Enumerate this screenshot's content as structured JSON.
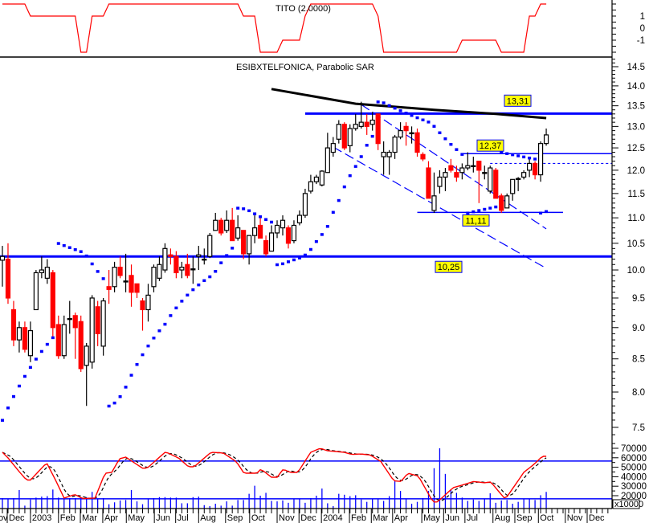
{
  "colors": {
    "up_fill": "#ffffff",
    "up_stroke": "#000000",
    "down": "#ff0000",
    "sar": "#0000ff",
    "level": "#0000ff",
    "ma": "#000000",
    "oscillator": "#ff0000",
    "signal": "#000000",
    "volume": "#0000ff",
    "label_bg": "#ffff00"
  },
  "chart_data": [
    {
      "type": "line",
      "panel": "indicator-top",
      "title": "TITO (2.0000)",
      "ylim": [
        -2,
        2
      ],
      "tick_labels": [
        "1",
        "0",
        "-1"
      ],
      "tick_values": [
        1,
        0,
        -1
      ],
      "values": [
        2,
        2,
        2,
        2,
        2,
        1,
        1,
        1,
        1,
        1,
        1,
        1,
        1,
        1,
        -2,
        -2,
        1,
        1,
        1,
        2,
        2,
        2,
        2,
        2,
        2,
        2,
        2,
        2,
        2,
        2,
        2,
        2,
        2,
        2,
        2,
        2,
        2,
        2,
        2,
        2,
        2,
        2,
        2,
        1,
        1,
        1,
        -2,
        -2,
        -2,
        -2,
        -1,
        -1,
        -1,
        -1,
        1,
        2,
        2,
        2,
        2,
        2,
        2,
        2,
        2,
        2,
        2,
        2,
        2,
        1,
        -2,
        -2,
        -2,
        -2,
        -2,
        -2,
        -2,
        -2,
        -2,
        -2,
        -2,
        -2,
        -2,
        -2,
        -1,
        -1,
        -1,
        -1,
        -1,
        -1,
        -1,
        -2,
        -2,
        -2,
        -2,
        -2,
        1,
        1,
        2,
        2
      ]
    },
    {
      "type": "candlestick",
      "panel": "price",
      "title": "ESIBXTELFONICA, Parabolic SAR",
      "scale": "log",
      "ylim": [
        7.3,
        14.7
      ],
      "tick_labels": [
        "14.5",
        "14.0",
        "13.5",
        "13.0",
        "12.5",
        "12.0",
        "11.5",
        "11.0",
        "10.5",
        "10.0",
        "9.5",
        "9.0",
        "8.5",
        "8.0",
        "7.5"
      ],
      "tick_values": [
        14.5,
        14.0,
        13.5,
        13.0,
        12.5,
        12.0,
        11.5,
        11.0,
        10.5,
        10.0,
        9.5,
        9.0,
        8.5,
        8.0,
        7.5
      ],
      "ohlc": [
        [
          10.18,
          10.45,
          9.7,
          10.25
        ],
        [
          10.2,
          10.5,
          9.4,
          9.5
        ],
        [
          9.3,
          9.45,
          8.7,
          8.8
        ],
        [
          8.8,
          9.1,
          8.6,
          9.0
        ],
        [
          9.0,
          9.1,
          8.6,
          8.65
        ],
        [
          8.55,
          9.1,
          8.45,
          8.95
        ],
        [
          9.3,
          10.0,
          9.3,
          9.95
        ],
        [
          9.95,
          10.25,
          9.85,
          10.0
        ],
        [
          9.85,
          10.2,
          9.75,
          10.05
        ],
        [
          9.95,
          10.0,
          8.85,
          9.0
        ],
        [
          9.05,
          9.2,
          8.5,
          8.55
        ],
        [
          8.55,
          9.2,
          8.5,
          9.05
        ],
        [
          9.15,
          9.45,
          8.9,
          9.15
        ],
        [
          9.2,
          9.25,
          8.5,
          9.0
        ],
        [
          9.1,
          9.2,
          8.3,
          8.35
        ],
        [
          8.4,
          8.75,
          7.8,
          8.7
        ],
        [
          8.45,
          9.55,
          8.35,
          9.5
        ],
        [
          9.35,
          9.45,
          8.7,
          8.9
        ],
        [
          8.7,
          9.5,
          8.55,
          9.45
        ],
        [
          9.7,
          10.0,
          9.4,
          9.65
        ],
        [
          9.7,
          10.15,
          9.6,
          10.05
        ],
        [
          10.05,
          10.25,
          9.85,
          9.9
        ],
        [
          9.8,
          10.3,
          9.6,
          9.8
        ],
        [
          9.9,
          10.1,
          9.35,
          9.6
        ],
        [
          9.75,
          9.75,
          9.5,
          9.6
        ],
        [
          9.45,
          9.5,
          8.95,
          9.3
        ],
        [
          9.3,
          9.75,
          9.1,
          9.55
        ],
        [
          9.7,
          10.1,
          9.6,
          10.05
        ],
        [
          9.85,
          10.25,
          9.8,
          10.1
        ],
        [
          10.0,
          10.5,
          9.95,
          10.4
        ],
        [
          10.28,
          10.4,
          10.1,
          10.25
        ],
        [
          10.25,
          10.35,
          9.85,
          9.95
        ],
        [
          10.0,
          10.15,
          9.85,
          10.05
        ],
        [
          10.1,
          10.3,
          9.85,
          9.9
        ],
        [
          10.02,
          10.25,
          9.75,
          10.02
        ],
        [
          10.25,
          10.45,
          10.0,
          10.28
        ],
        [
          10.2,
          10.4,
          10.1,
          10.2
        ],
        [
          10.25,
          10.7,
          10.22,
          10.65
        ],
        [
          10.75,
          11.1,
          10.75,
          10.95
        ],
        [
          10.95,
          11.0,
          10.65,
          10.7
        ],
        [
          10.75,
          11.15,
          10.7,
          10.95
        ],
        [
          10.95,
          11.2,
          10.55,
          10.55
        ],
        [
          10.6,
          11.05,
          10.55,
          10.8
        ],
        [
          10.75,
          10.75,
          10.2,
          10.3
        ],
        [
          10.3,
          10.65,
          10.1,
          10.65
        ],
        [
          10.65,
          11.05,
          10.5,
          10.8
        ],
        [
          10.85,
          11.0,
          10.6,
          10.6
        ],
        [
          10.55,
          10.65,
          10.25,
          10.3
        ],
        [
          10.35,
          10.85,
          10.35,
          10.7
        ],
        [
          10.7,
          10.95,
          10.6,
          10.85
        ],
        [
          10.8,
          11.05,
          10.65,
          10.95
        ],
        [
          10.8,
          10.85,
          10.4,
          10.5
        ],
        [
          10.55,
          10.95,
          10.5,
          10.85
        ],
        [
          10.9,
          11.15,
          10.85,
          11.05
        ],
        [
          11.05,
          11.6,
          11.0,
          11.5
        ],
        [
          11.55,
          11.9,
          11.5,
          11.75
        ],
        [
          11.75,
          11.9,
          11.7,
          11.85
        ],
        [
          11.68,
          12.0,
          11.65,
          11.98
        ],
        [
          11.95,
          12.85,
          11.95,
          12.5
        ],
        [
          12.4,
          12.75,
          12.3,
          12.6
        ],
        [
          12.7,
          13.15,
          12.6,
          13.05
        ],
        [
          13.05,
          13.1,
          12.45,
          12.5
        ],
        [
          12.55,
          13.05,
          12.4,
          12.95
        ],
        [
          12.95,
          13.3,
          12.9,
          13.05
        ],
        [
          13.0,
          13.6,
          12.95,
          13.1
        ],
        [
          13.1,
          13.3,
          12.8,
          13.0
        ],
        [
          13.05,
          13.35,
          12.9,
          13.15
        ],
        [
          13.3,
          13.3,
          12.45,
          12.6
        ],
        [
          12.3,
          12.65,
          11.9,
          12.4
        ],
        [
          12.3,
          12.45,
          11.9,
          12.4
        ],
        [
          12.4,
          12.8,
          12.25,
          12.75
        ],
        [
          12.75,
          13.1,
          12.7,
          12.9
        ],
        [
          13.0,
          13.1,
          12.55,
          12.9
        ],
        [
          12.85,
          13.0,
          12.6,
          12.85
        ],
        [
          12.85,
          12.95,
          12.3,
          12.4
        ],
        [
          12.35,
          12.4,
          12.2,
          12.25
        ],
        [
          12.05,
          12.2,
          11.4,
          11.4
        ],
        [
          11.15,
          11.95,
          11.1,
          11.45
        ],
        [
          11.65,
          12.0,
          11.5,
          11.85
        ],
        [
          11.85,
          12.05,
          11.55,
          11.95
        ],
        [
          12.1,
          12.25,
          11.95,
          12.0
        ],
        [
          11.95,
          12.1,
          11.75,
          11.85
        ],
        [
          11.95,
          12.15,
          11.8,
          12.05
        ],
        [
          12.05,
          12.4,
          12.0,
          12.1
        ],
        [
          12.1,
          12.3,
          11.95,
          12.1
        ],
        [
          12.2,
          12.2,
          11.3,
          12.0
        ],
        [
          11.95,
          12.1,
          11.8,
          11.95
        ],
        [
          11.55,
          12.1,
          11.5,
          12.05
        ],
        [
          12.0,
          12.05,
          11.4,
          11.4
        ],
        [
          11.45,
          11.5,
          11.1,
          11.15
        ],
        [
          11.2,
          11.5,
          11.2,
          11.45
        ],
        [
          11.5,
          11.8,
          11.35,
          11.8
        ],
        [
          11.8,
          11.85,
          11.55,
          11.82
        ],
        [
          11.85,
          12.0,
          11.8,
          11.95
        ],
        [
          12.0,
          12.25,
          11.85,
          12.15
        ],
        [
          12.15,
          12.2,
          11.8,
          11.9
        ],
        [
          11.9,
          12.65,
          11.75,
          12.6
        ],
        [
          12.6,
          12.95,
          12.55,
          12.8
        ]
      ],
      "sar": {
        "step": 0.02,
        "max": 0.2,
        "initial": {
          "trend": "up",
          "sar": 7.6,
          "ep": 10.5,
          "af": 0.06
        }
      },
      "moving_average": [
        [
          48,
          13.92
        ],
        [
          63,
          13.55
        ],
        [
          77,
          13.4
        ],
        [
          88,
          13.3
        ],
        [
          97,
          13.2
        ]
      ],
      "levels": [
        {
          "value": 13.31,
          "label": "13,31",
          "from": 54,
          "weight": "thick"
        },
        {
          "value": 12.37,
          "label": "12,37",
          "from": 82,
          "weight": "thin"
        },
        {
          "value": 12.15,
          "label": "",
          "from": 87,
          "weight": "dotted"
        },
        {
          "value": 11.11,
          "label": "11,11",
          "from": 74,
          "to": 100,
          "weight": "thin"
        },
        {
          "value": 10.25,
          "label": "10,25",
          "from": -1,
          "weight": "thick"
        }
      ],
      "level_labels": [
        "13,31",
        "12,37",
        "11,11",
        "10,25"
      ],
      "trend_channel": [
        {
          "from": [
            64,
            13.53
          ],
          "to": [
            97,
            10.78
          ]
        },
        {
          "from": [
            59,
            12.52
          ],
          "to": [
            97,
            10.03
          ]
        }
      ]
    },
    {
      "type": "bar+line",
      "panel": "volume",
      "ylim": [
        6400,
        72000
      ],
      "unit_label": "x10000",
      "tick_labels": [
        "70000",
        "60000",
        "50000",
        "40000",
        "30000",
        "20000"
      ],
      "tick_values": [
        70000,
        60000,
        50000,
        40000,
        30000,
        20000
      ],
      "volume": [
        17500,
        16700,
        17500,
        26000,
        9500,
        16000,
        18000,
        19000,
        19500,
        26500,
        18000,
        17000,
        17500,
        17500,
        18000,
        18500,
        24000,
        16500,
        17500,
        11000,
        13000,
        15000,
        15500,
        26000,
        14000,
        11000,
        17000,
        17500,
        18500,
        18500,
        18000,
        18000,
        12000,
        12000,
        18500,
        19000,
        10000,
        9000,
        11500,
        9500,
        14000,
        9500,
        15500,
        15500,
        22000,
        30500,
        20000,
        23000,
        14500,
        14000,
        15000,
        12500,
        16500,
        17000,
        12500,
        17500,
        20000,
        27500,
        12000,
        9000,
        22000,
        21000,
        19500,
        20500,
        16000,
        13500,
        17000,
        16500,
        14500,
        19500,
        35500,
        25000,
        17000,
        11500,
        13500,
        17500,
        25000,
        49000,
        70000,
        43000,
        26000,
        23000,
        18000,
        14500,
        16000,
        14500,
        16500,
        22500,
        12500,
        15000,
        15500,
        11500,
        13500,
        17000,
        17000,
        15500,
        20500,
        24000
      ],
      "oscillator_keyframes": [
        [
          0,
          65800
        ],
        [
          1,
          59800
        ],
        [
          2.9,
          46000
        ],
        [
          4.3,
          36500
        ],
        [
          5,
          36500
        ],
        [
          7.9,
          54700
        ],
        [
          9.6,
          35000
        ],
        [
          11,
          17500
        ],
        [
          12.9,
          21300
        ],
        [
          14.3,
          17000
        ],
        [
          16.5,
          17500
        ],
        [
          18.3,
          43700
        ],
        [
          19.5,
          44600
        ],
        [
          20.9,
          59000
        ],
        [
          22,
          60700
        ],
        [
          25,
          49000
        ],
        [
          25.8,
          49000
        ],
        [
          29.1,
          66200
        ],
        [
          31.4,
          59800
        ],
        [
          33.2,
          50500
        ],
        [
          34.2,
          50500
        ],
        [
          37.2,
          65800
        ],
        [
          39.4,
          65000
        ],
        [
          41.7,
          56000
        ],
        [
          43.1,
          43700
        ],
        [
          45.4,
          43700
        ],
        [
          46.1,
          48000
        ],
        [
          48,
          39500
        ],
        [
          49,
          39500
        ],
        [
          50.1,
          48000
        ],
        [
          51.3,
          44600
        ],
        [
          52.7,
          44600
        ],
        [
          55,
          65800
        ],
        [
          56.7,
          70000
        ],
        [
          57.9,
          67500
        ],
        [
          60.9,
          65800
        ],
        [
          62.3,
          63500
        ],
        [
          63.8,
          64000
        ],
        [
          65.6,
          63000
        ],
        [
          67.5,
          56000
        ],
        [
          69.8,
          35700
        ],
        [
          71.1,
          35000
        ],
        [
          72.3,
          43700
        ],
        [
          74.2,
          40700
        ],
        [
          76.8,
          13400
        ],
        [
          77.6,
          13400
        ],
        [
          80.4,
          28500
        ],
        [
          81.9,
          31000
        ],
        [
          84.1,
          35000
        ],
        [
          85.9,
          33600
        ],
        [
          87.1,
          34500
        ],
        [
          89.7,
          16300
        ],
        [
          93,
          44600
        ],
        [
          94.8,
          53000
        ],
        [
          96.3,
          61500
        ],
        [
          97,
          61500
        ]
      ],
      "levels": [
        56500,
        16700
      ]
    }
  ],
  "x_axis": {
    "months": [
      {
        "label": "Nov",
        "at": -2.15
      },
      {
        "label": "Dec",
        "at": 0.86
      },
      {
        "label": "2003",
        "at": 5.0
      },
      {
        "label": "Feb",
        "at": 10.0
      },
      {
        "label": "Mar",
        "at": 13.9
      },
      {
        "label": "Apr",
        "at": 17.9
      },
      {
        "label": "May",
        "at": 22.1
      },
      {
        "label": "Jun",
        "at": 27.1
      },
      {
        "label": "Jul",
        "at": 30.9
      },
      {
        "label": "Aug",
        "at": 35.0
      },
      {
        "label": "Sep",
        "at": 39.8
      },
      {
        "label": "Oct",
        "at": 44.1
      },
      {
        "label": "Nov",
        "at": 49.0
      },
      {
        "label": "Dec",
        "at": 52.9
      },
      {
        "label": "2004",
        "at": 56.9
      },
      {
        "label": "Feb",
        "at": 61.9
      },
      {
        "label": "Mar",
        "at": 65.8
      },
      {
        "label": "Apr",
        "at": 69.6
      },
      {
        "label": "May",
        "at": 74.8
      },
      {
        "label": "Jun",
        "at": 78.7
      },
      {
        "label": "Jul",
        "at": 82.5
      },
      {
        "label": "Aug",
        "at": 87.5
      },
      {
        "label": "Sep",
        "at": 91.4
      },
      {
        "label": "Oct",
        "at": 95.6
      },
      {
        "label": "Nov",
        "at": 100.4
      },
      {
        "label": "Dec",
        "at": 104.3
      }
    ],
    "end_index": 108.7
  }
}
